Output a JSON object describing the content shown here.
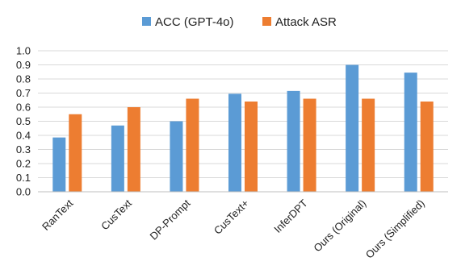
{
  "chart_data": {
    "type": "bar",
    "title": "",
    "xlabel": "",
    "ylabel": "",
    "ylim": [
      0,
      1.0
    ],
    "yticks": [
      "0.0",
      "0.1",
      "0.2",
      "0.3",
      "0.4",
      "0.5",
      "0.6",
      "0.7",
      "0.8",
      "0.9",
      "1.0"
    ],
    "grid": true,
    "legend_position": "top-center",
    "categories": [
      "RanText",
      "CusText",
      "DP-Prompt",
      "CusText+",
      "InferDPT",
      "Ours (Original)",
      "Ours (Simplified)"
    ],
    "series": [
      {
        "name": "ACC (GPT-4o)",
        "color": "#5B9BD5",
        "values": [
          0.385,
          0.47,
          0.5,
          0.695,
          0.715,
          0.9,
          0.845
        ]
      },
      {
        "name": "Attack ASR",
        "color": "#ED7D31",
        "values": [
          0.55,
          0.6,
          0.66,
          0.64,
          0.66,
          0.66,
          0.64
        ]
      }
    ]
  }
}
